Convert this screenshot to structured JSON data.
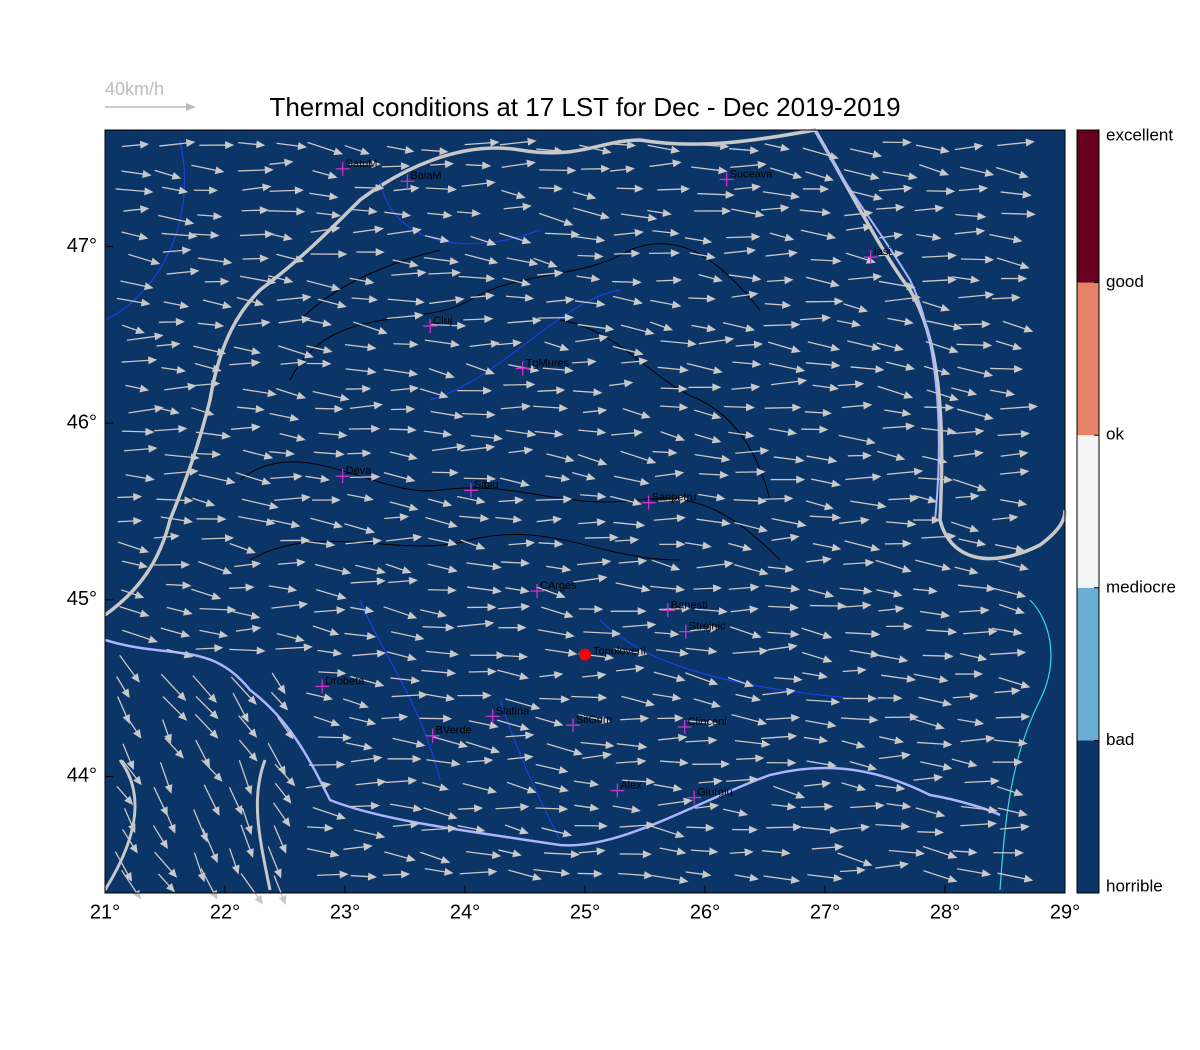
{
  "chart_data": {
    "type": "map",
    "title": "Thermal conditions at 17 LST for Dec - Dec  2019-2019",
    "wind_scale_label": "40km/h",
    "xlim": [
      21,
      29
    ],
    "ylim": [
      43.34,
      47.66
    ],
    "xticks": [
      {
        "value": 21,
        "label": "21°"
      },
      {
        "value": 22,
        "label": "22°"
      },
      {
        "value": 23,
        "label": "23°"
      },
      {
        "value": 24,
        "label": "24°"
      },
      {
        "value": 25,
        "label": "25°"
      },
      {
        "value": 26,
        "label": "26°"
      },
      {
        "value": 27,
        "label": "27°"
      },
      {
        "value": 28,
        "label": "28°"
      },
      {
        "value": 29,
        "label": "29°"
      }
    ],
    "yticks": [
      {
        "value": 44,
        "label": "44°"
      },
      {
        "value": 45,
        "label": "45°"
      },
      {
        "value": 46,
        "label": "46°"
      },
      {
        "value": 47,
        "label": "47°"
      }
    ],
    "background_color": "#0b3467",
    "cities": {
      "names": [
        "SatuM",
        "BaiaM",
        "Suceava",
        "Iasi",
        "Cluj",
        "TgMures",
        "Deva",
        "Sibiu",
        "Sanpetru",
        "CArges",
        "Banesti",
        "Strejnic",
        "Drobeta",
        "Slatina",
        "SilGum",
        "Clinceni",
        "BVerde",
        "Alex",
        "Giurgiu"
      ],
      "lon": [
        22.98,
        23.52,
        26.18,
        27.38,
        23.71,
        24.48,
        22.98,
        24.05,
        25.53,
        24.6,
        25.69,
        25.84,
        22.81,
        24.23,
        24.9,
        25.83,
        23.73,
        25.27,
        25.91
      ],
      "lat": [
        47.44,
        47.37,
        47.38,
        46.94,
        46.55,
        46.31,
        45.7,
        45.62,
        45.55,
        45.05,
        44.94,
        44.82,
        44.51,
        44.34,
        44.29,
        44.28,
        44.23,
        43.92,
        43.88
      ],
      "color": "#cc33cc"
    },
    "highlight": {
      "name": "Topoloveni",
      "lon": 25.0,
      "lat": 44.69,
      "color": "#ff0000"
    },
    "legend": {
      "labels": [
        "horrible",
        "bad",
        "mediocre",
        "ok",
        "good",
        "excellent"
      ],
      "colors": [
        "#0b3467",
        "#6aaed6",
        "#f4f4f6",
        "#e58267",
        "#67001f"
      ]
    }
  }
}
